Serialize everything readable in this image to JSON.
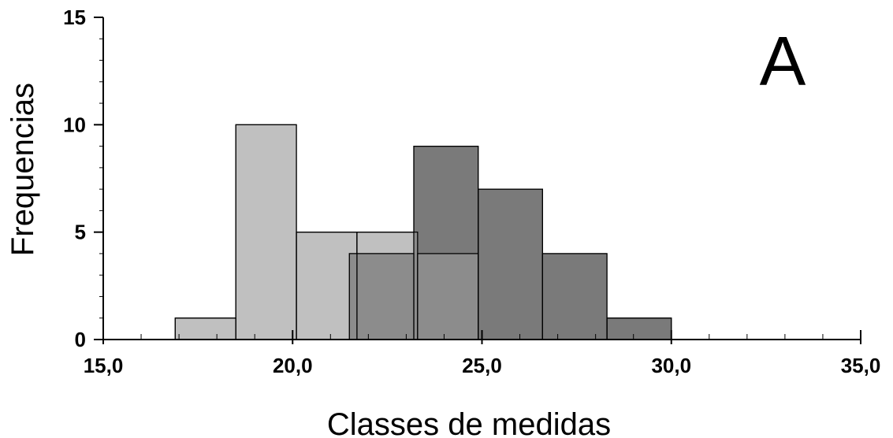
{
  "chart_data": {
    "type": "bar",
    "subtype": "histogram-overlapping",
    "title": "",
    "panel_label": "A",
    "xlabel": "Classes de medidas",
    "ylabel": "Frequencias",
    "xlim": [
      15,
      35
    ],
    "ylim": [
      0,
      15
    ],
    "x_ticks": [
      15,
      20,
      25,
      30,
      35
    ],
    "x_tick_labels": [
      "15,0",
      "20,0",
      "25,0",
      "30,0",
      "35,0"
    ],
    "y_ticks": [
      0,
      5,
      10,
      15
    ],
    "y_tick_labels": [
      "0",
      "5",
      "10",
      "15"
    ],
    "x_minor_step": 1,
    "y_minor_step": 1,
    "grid": false,
    "legend": "none",
    "overlap_color": "#8c8c8c",
    "series": [
      {
        "color": "#c0c0c0",
        "bins": [
          {
            "start": 16.9,
            "end": 18.5,
            "value": 1
          },
          {
            "start": 18.5,
            "end": 20.1,
            "value": 10
          },
          {
            "start": 20.1,
            "end": 21.7,
            "value": 5
          },
          {
            "start": 21.7,
            "end": 23.3,
            "value": 5
          },
          {
            "start": 23.3,
            "end": 24.9,
            "value": 4
          }
        ]
      },
      {
        "color": "#474747",
        "bins": [
          {
            "start": 21.5,
            "end": 23.2,
            "value": 4
          },
          {
            "start": 23.2,
            "end": 24.9,
            "value": 9
          },
          {
            "start": 24.9,
            "end": 26.6,
            "value": 7
          },
          {
            "start": 26.6,
            "end": 28.3,
            "value": 4
          },
          {
            "start": 28.3,
            "end": 30.0,
            "value": 1
          }
        ]
      }
    ]
  }
}
